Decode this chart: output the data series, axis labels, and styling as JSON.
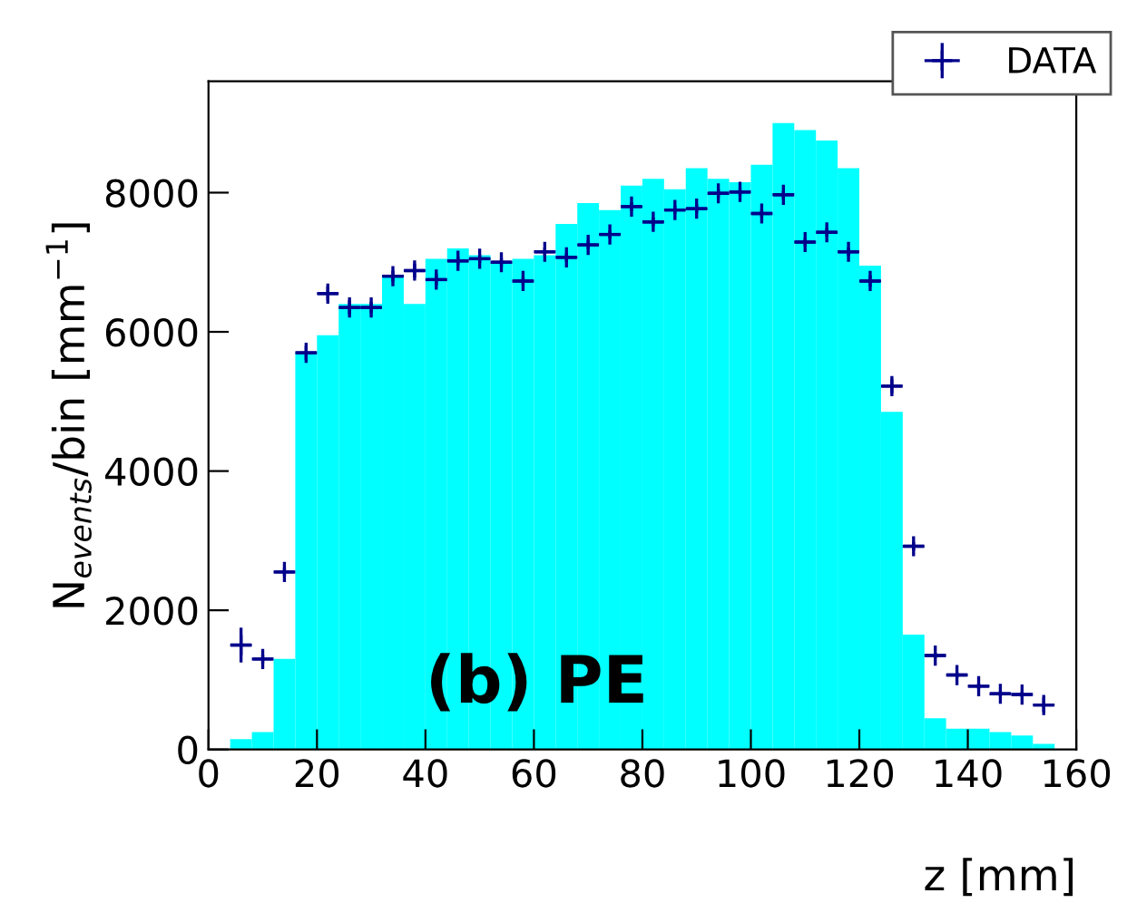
{
  "chart_data": {
    "type": "histogram",
    "xlabel": "z [mm]",
    "ylabel": "N$_{events}$/bin [mm$^{−1}$]",
    "annotations": [
      "(b) PE"
    ],
    "xlim": [
      0,
      160
    ],
    "xticks": [
      0,
      20,
      40,
      60,
      80,
      100,
      120,
      140,
      160
    ],
    "ylim": [
      0,
      9600
    ],
    "yticks": [
      0,
      2000,
      4000,
      6000,
      8000
    ],
    "grid": false,
    "legend": "top right",
    "series": [
      {
        "color": "#00ffff",
        "bins": [
          4,
          8,
          12,
          16,
          20,
          24,
          28,
          32,
          36,
          40,
          44,
          48,
          52,
          56,
          60,
          64,
          68,
          72,
          76,
          80,
          84,
          88,
          92,
          96,
          100,
          104,
          108,
          112,
          116,
          120,
          124,
          128,
          132,
          136,
          140,
          144,
          148,
          152,
          156
        ],
        "values": [
          150,
          250,
          1300,
          5700,
          5950,
          6400,
          6400,
          6800,
          6400,
          7050,
          7200,
          7100,
          7000,
          7050,
          7100,
          7550,
          7850,
          7750,
          8100,
          8200,
          8050,
          8350,
          8200,
          8150,
          8400,
          9000,
          8900,
          8750,
          8350,
          6950,
          4850,
          1650,
          450,
          300,
          300,
          250,
          200,
          80
        ]
      },
      {
        "type": "scatter",
        "name": "DATA",
        "color": "#00008b",
        "marker": "cross",
        "x": [
          6,
          10,
          14,
          18,
          22,
          26,
          30,
          34,
          38,
          42,
          46,
          50,
          54,
          58,
          62,
          66,
          70,
          74,
          78,
          82,
          86,
          90,
          94,
          98,
          102,
          106,
          110,
          114,
          118,
          122,
          126,
          130,
          134,
          138,
          142,
          146,
          150,
          154
        ],
        "values": [
          1500,
          1300,
          2550,
          5700,
          6550,
          6350,
          6350,
          6800,
          6880,
          6750,
          7020,
          7050,
          7000,
          6730,
          7150,
          7070,
          7250,
          7400,
          7800,
          7580,
          7750,
          7770,
          7990,
          8010,
          7700,
          7970,
          7290,
          7430,
          7150,
          6730,
          5220,
          2920,
          1350,
          1070,
          910,
          800,
          790,
          640
        ],
        "errors": [
          250,
          60,
          60,
          100,
          100,
          100,
          80,
          80,
          100,
          80,
          60,
          60,
          60,
          60,
          60,
          60,
          60,
          60,
          60,
          60,
          60,
          60,
          60,
          60,
          60,
          60,
          60,
          60,
          60,
          80,
          100,
          60,
          40,
          40,
          40,
          40,
          40,
          100
        ],
        "xerrors": [
          2,
          2,
          2,
          2,
          2,
          2,
          2,
          2,
          2,
          2,
          2,
          2,
          2,
          2,
          2,
          2,
          2,
          2,
          2,
          2,
          2,
          2,
          2,
          2,
          2,
          2,
          2,
          2,
          2,
          2,
          2,
          2,
          2,
          2,
          2,
          2,
          2,
          2
        ]
      }
    ]
  }
}
